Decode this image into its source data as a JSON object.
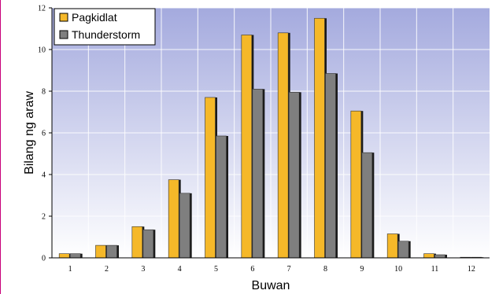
{
  "chart_data": {
    "type": "bar",
    "xlabel": "Buwan",
    "ylabel": "Bilang ng araw",
    "ylim": [
      0,
      12
    ],
    "yticks": [
      0,
      2,
      4,
      6,
      8,
      10,
      12
    ],
    "categories": [
      "1",
      "2",
      "3",
      "4",
      "5",
      "6",
      "7",
      "8",
      "9",
      "10",
      "11",
      "12"
    ],
    "series": [
      {
        "name": "Pagkidlat",
        "color": "#f5b829",
        "values": [
          0.2,
          0.6,
          1.5,
          3.75,
          7.7,
          10.7,
          10.8,
          11.5,
          7.05,
          1.15,
          0.2,
          0.03
        ]
      },
      {
        "name": "Thunderstorm",
        "color": "#7f7f7f",
        "values": [
          0.2,
          0.6,
          1.35,
          3.1,
          5.85,
          8.1,
          7.95,
          8.85,
          5.05,
          0.8,
          0.15,
          0.03
        ]
      }
    ],
    "legend": "top-left",
    "grid": true,
    "background": "gradient lavender to white"
  }
}
